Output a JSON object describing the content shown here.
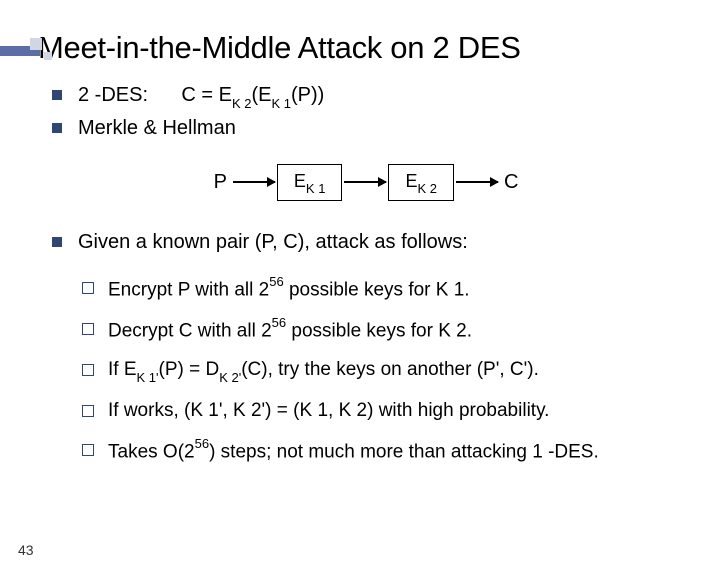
{
  "title": "Meet-in-the-Middle Attack on 2 DES",
  "bullets": {
    "b1_prefix": "2 -DES:",
    "b1_eq_l": "C = E",
    "b1_eq_s1": "K 2",
    "b1_eq_m": "(E",
    "b1_eq_s2": "K 1",
    "b1_eq_r": "(P))",
    "b2": "Merkle  & Hellman",
    "b3": "Given a known pair (P, C), attack as follows:"
  },
  "diagram": {
    "p": "P",
    "ek1_l": "E",
    "ek1_s": "K 1",
    "ek2_l": "E",
    "ek2_s": "K 2",
    "c": "C"
  },
  "steps": {
    "s1_a": "Encrypt P with all 2",
    "s1_exp": "56",
    "s1_b": " possible keys for K 1.",
    "s2_a": "Decrypt C with all 2",
    "s2_exp": "56",
    "s2_b": " possible keys for K 2.",
    "s3_a": "If E",
    "s3_s1": "K 1'",
    "s3_b": "(P) = D",
    "s3_s2": "K 2'",
    "s3_c": "(C), try the keys on another (P', C').",
    "s4": "If works, (K 1', K 2') = (K 1, K 2) with high probability.",
    "s5_a": "Takes O(2",
    "s5_exp": "56",
    "s5_b": ") steps; not much more than attacking 1 -DES."
  },
  "pagenum": "43"
}
